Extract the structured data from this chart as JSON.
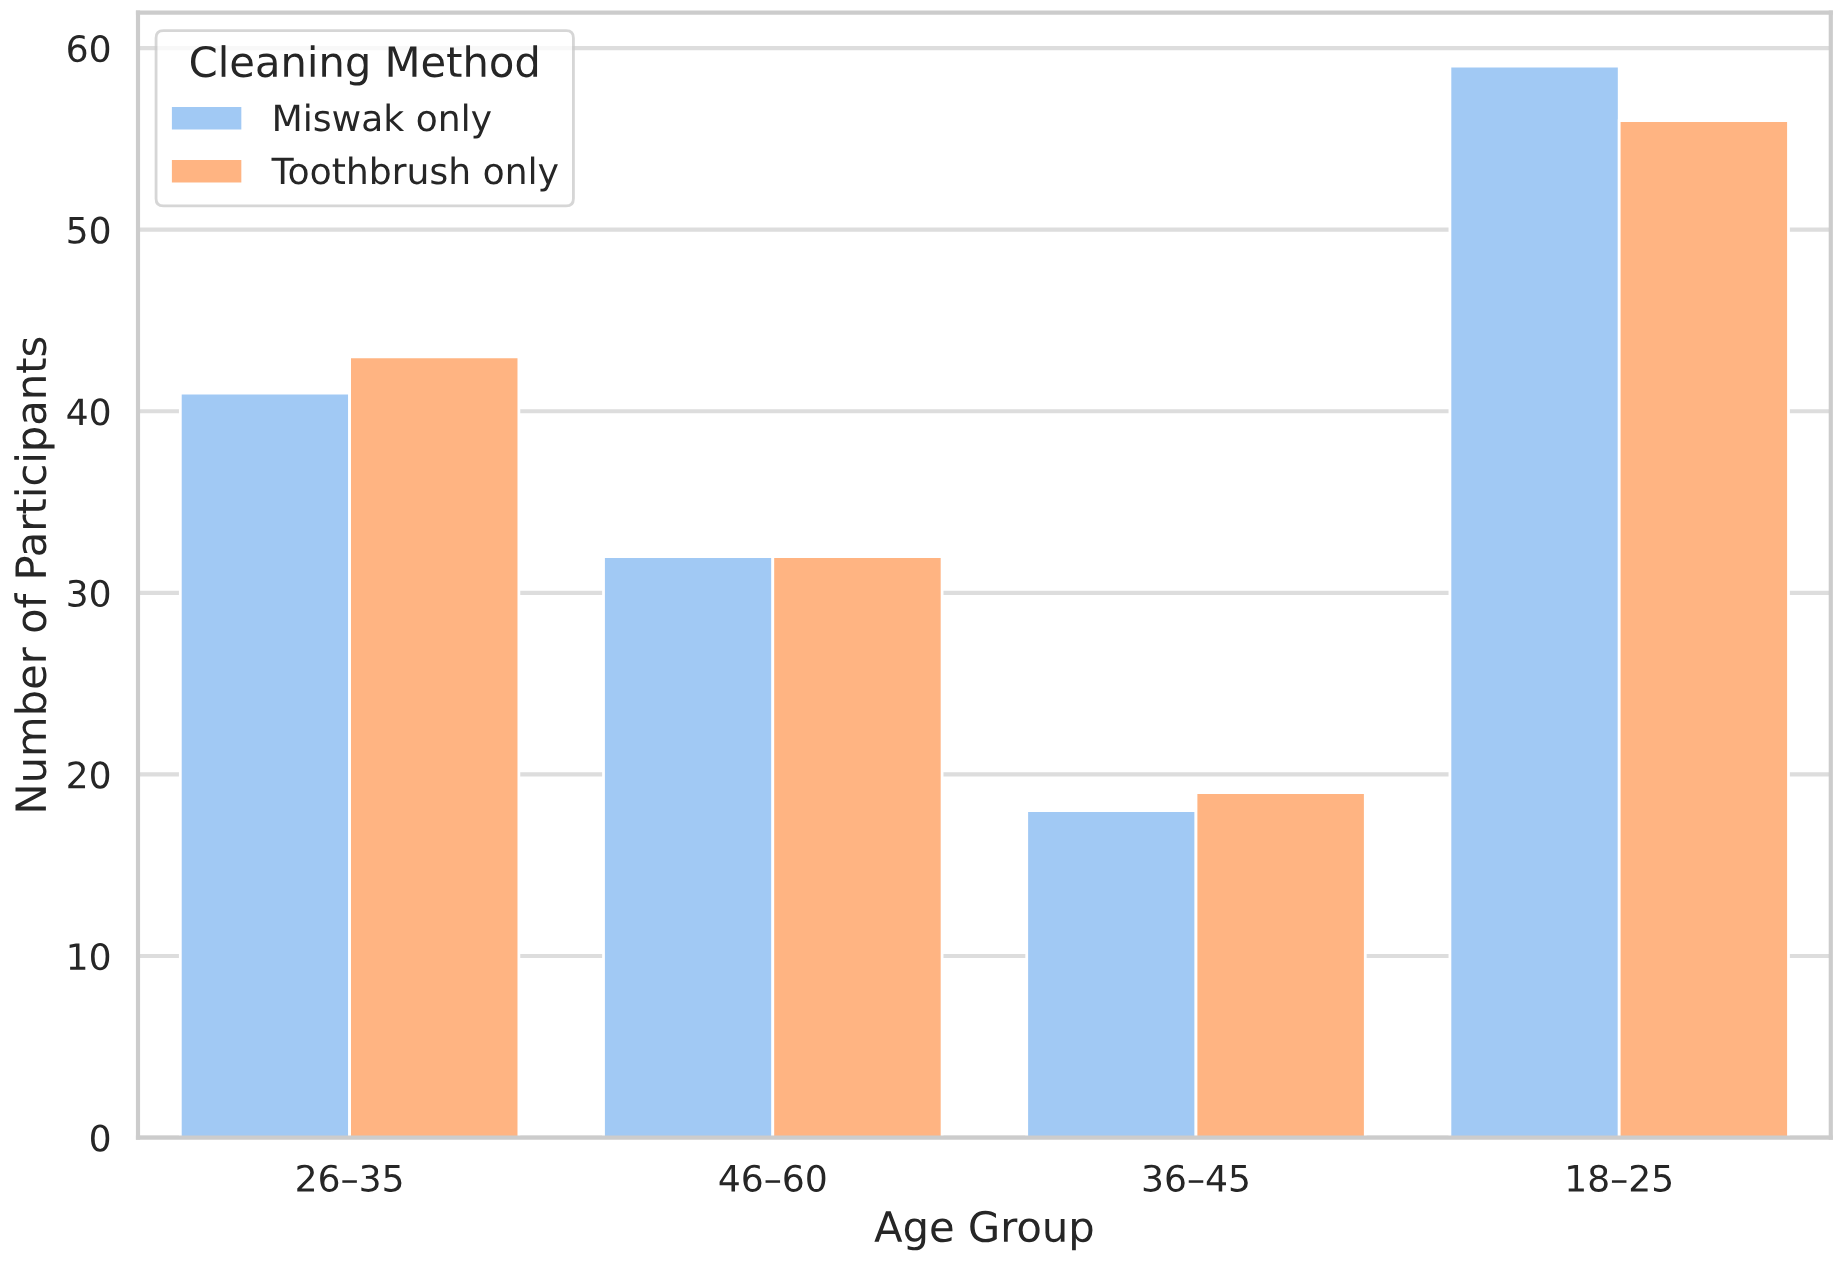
{
  "chart_data": {
    "type": "bar",
    "xlabel": "Age Group",
    "ylabel": "Number of Participants",
    "legend_title": "Cleaning Method",
    "categories": [
      "26–35",
      "46–60",
      "36–45",
      "18–25"
    ],
    "series": [
      {
        "name": "Miswak only",
        "color": "#a1c9f4",
        "values": [
          41,
          32,
          18,
          59
        ]
      },
      {
        "name": "Toothbrush only",
        "color": "#ffb482",
        "values": [
          43,
          32,
          19,
          56
        ]
      }
    ],
    "ylim": [
      0,
      61.95
    ],
    "yticks": [
      0,
      10,
      20,
      30,
      40,
      50,
      60
    ],
    "grid": "y",
    "legend": "top left"
  }
}
